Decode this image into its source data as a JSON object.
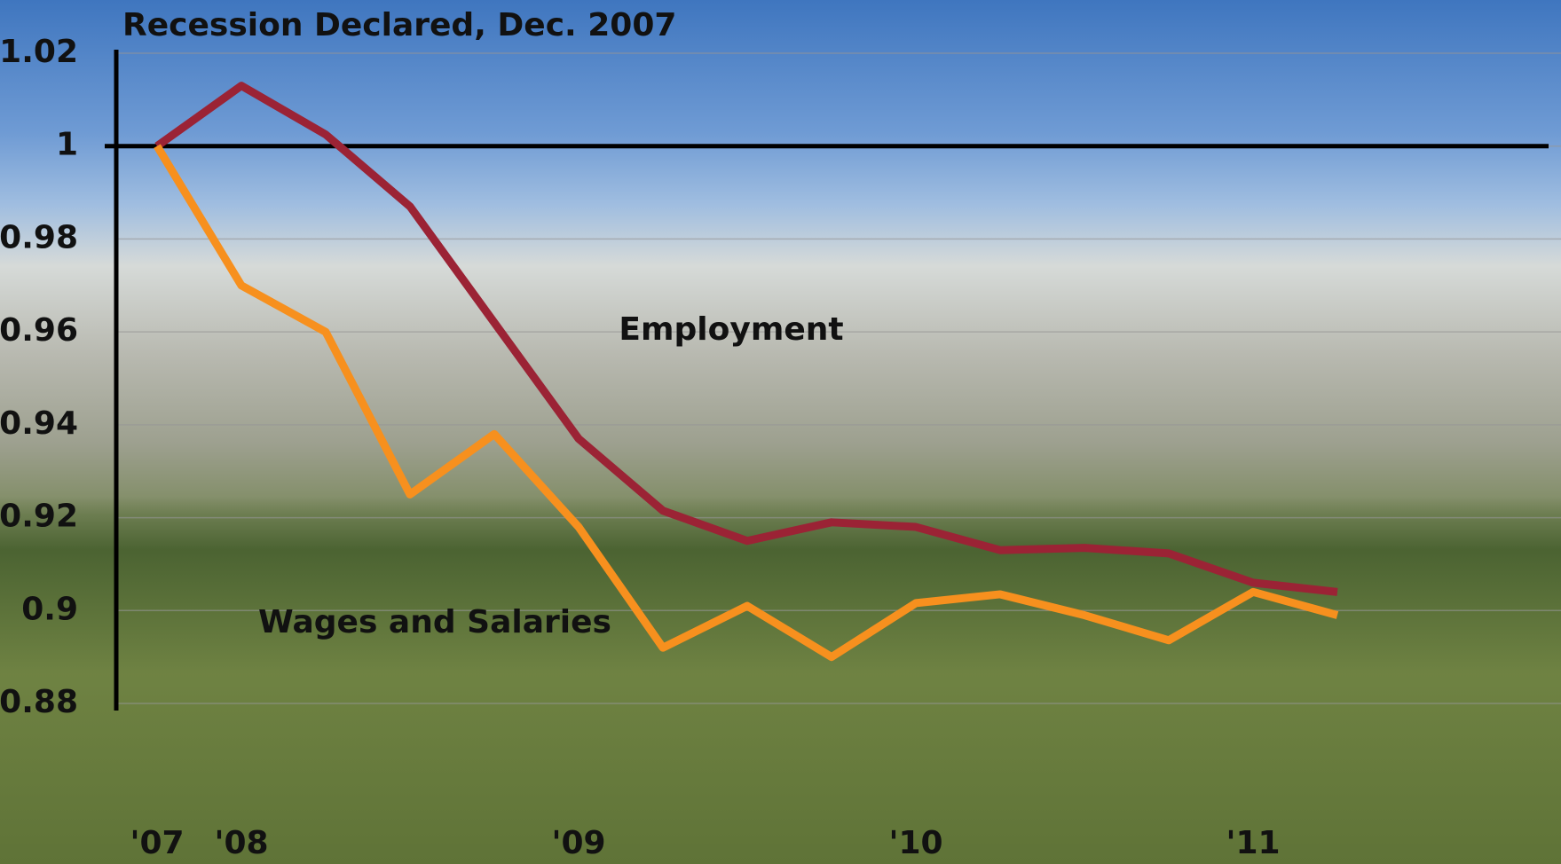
{
  "chart_data": {
    "type": "line",
    "title": "Recession Declared, Dec. 2007",
    "categories": [
      "'07",
      "'08",
      null,
      null,
      null,
      "'09",
      null,
      null,
      null,
      "'10",
      null,
      null,
      null,
      "'11",
      null
    ],
    "series": [
      {
        "name": "Employment",
        "color": "#9b2335",
        "values": [
          1.0,
          1.013,
          1.0025,
          0.987,
          0.962,
          0.937,
          0.9215,
          0.915,
          0.919,
          0.918,
          0.913,
          0.9135,
          0.9123,
          0.906,
          0.904
        ]
      },
      {
        "name": "Wages and Salaries",
        "color": "#f7901e",
        "values": [
          1.0,
          0.97,
          0.96,
          0.925,
          0.938,
          0.918,
          0.892,
          0.901,
          0.89,
          0.9016,
          0.9035,
          0.899,
          0.8936,
          0.904,
          0.899
        ]
      }
    ],
    "ylim": [
      0.88,
      1.02
    ],
    "yticks": [
      0.88,
      0.9,
      0.92,
      0.94,
      0.96,
      0.98,
      1,
      1.02
    ],
    "reference_line": 1,
    "grid": true
  }
}
